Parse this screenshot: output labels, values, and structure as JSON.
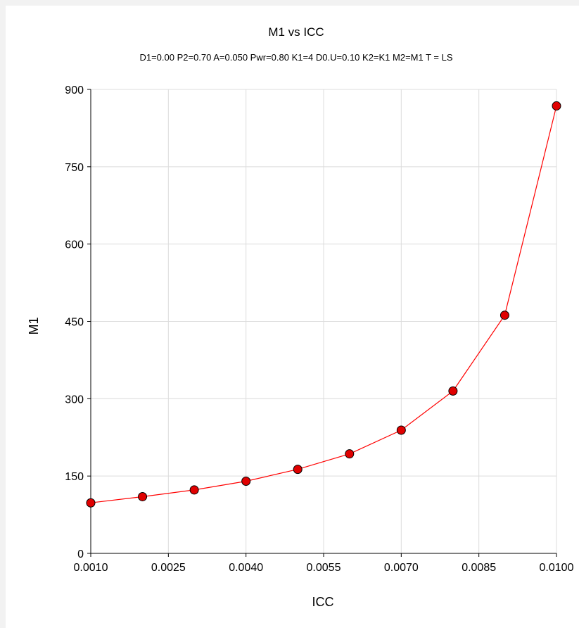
{
  "chart_data": {
    "type": "line",
    "title": "M1 vs ICC",
    "subtitle": "D1=0.00 P2=0.70 A=0.050 Pwr=0.80 K1=4 D0.U=0.10 K2=K1 M2=M1 T = LS",
    "xlabel": "ICC",
    "ylabel": "M1",
    "xlim": [
      0.001,
      0.01
    ],
    "ylim": [
      0,
      900
    ],
    "x_ticks": [
      "0.0010",
      "0.0025",
      "0.0040",
      "0.0055",
      "0.0070",
      "0.0085",
      "0.0100"
    ],
    "x_tick_values": [
      0.001,
      0.0025,
      0.004,
      0.0055,
      0.007,
      0.0085,
      0.01
    ],
    "y_ticks": [
      "0",
      "150",
      "300",
      "450",
      "600",
      "750",
      "900"
    ],
    "y_tick_values": [
      0,
      150,
      300,
      450,
      600,
      750,
      900
    ],
    "grid": true,
    "series": [
      {
        "x": [
          0.001,
          0.002,
          0.003,
          0.004,
          0.005,
          0.006,
          0.007,
          0.008,
          0.009,
          0.01
        ],
        "values": [
          98,
          110,
          123,
          140,
          163,
          193,
          239,
          315,
          462,
          868
        ],
        "color": "#ff0000",
        "marker_color": "#e00000"
      }
    ]
  }
}
